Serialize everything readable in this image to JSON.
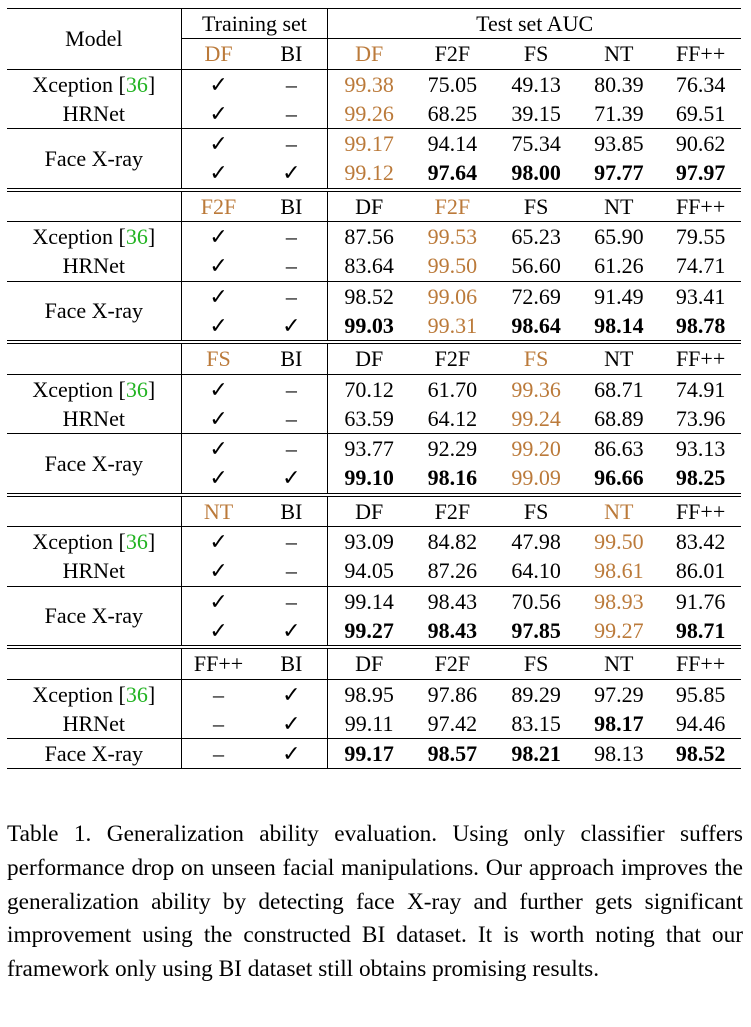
{
  "header": {
    "model_label": "Model",
    "training_set_label": "Training set",
    "test_set_label": "Test set AUC"
  },
  "styles": {
    "highlight_color": "#bb7a3a",
    "citation_color": "#22b322"
  },
  "blocks": [
    {
      "training_cols": [
        "DF",
        "BI"
      ],
      "test_cols": [
        "DF",
        "F2F",
        "FS",
        "NT",
        "FF++"
      ],
      "rows": [
        {
          "model": "Xception",
          "cite": "36",
          "train": [
            "✓",
            "–"
          ],
          "values": [
            "99.38",
            "75.05",
            "49.13",
            "80.39",
            "76.34"
          ]
        },
        {
          "model": "HRNet",
          "train": [
            "✓",
            "–"
          ],
          "values": [
            "99.26",
            "68.25",
            "39.15",
            "71.39",
            "69.51"
          ]
        },
        {
          "model": "Face X-ray",
          "train": [
            "✓",
            "–"
          ],
          "values": [
            "99.17",
            "94.14",
            "75.34",
            "93.85",
            "90.62"
          ]
        },
        {
          "train": [
            "✓",
            "✓"
          ],
          "values": [
            "99.12",
            "97.64",
            "98.00",
            "97.77",
            "97.97"
          ]
        }
      ]
    },
    {
      "training_cols": [
        "F2F",
        "BI"
      ],
      "test_cols": [
        "DF",
        "F2F",
        "FS",
        "NT",
        "FF++"
      ],
      "rows": [
        {
          "model": "Xception",
          "cite": "36",
          "train": [
            "✓",
            "–"
          ],
          "values": [
            "87.56",
            "99.53",
            "65.23",
            "65.90",
            "79.55"
          ]
        },
        {
          "model": "HRNet",
          "train": [
            "✓",
            "–"
          ],
          "values": [
            "83.64",
            "99.50",
            "56.60",
            "61.26",
            "74.71"
          ]
        },
        {
          "model": "Face X-ray",
          "train": [
            "✓",
            "–"
          ],
          "values": [
            "98.52",
            "99.06",
            "72.69",
            "91.49",
            "93.41"
          ]
        },
        {
          "train": [
            "✓",
            "✓"
          ],
          "values": [
            "99.03",
            "99.31",
            "98.64",
            "98.14",
            "98.78"
          ]
        }
      ]
    },
    {
      "training_cols": [
        "FS",
        "BI"
      ],
      "test_cols": [
        "DF",
        "F2F",
        "FS",
        "NT",
        "FF++"
      ],
      "rows": [
        {
          "model": "Xception",
          "cite": "36",
          "train": [
            "✓",
            "–"
          ],
          "values": [
            "70.12",
            "61.70",
            "99.36",
            "68.71",
            "74.91"
          ]
        },
        {
          "model": "HRNet",
          "train": [
            "✓",
            "–"
          ],
          "values": [
            "63.59",
            "64.12",
            "99.24",
            "68.89",
            "73.96"
          ]
        },
        {
          "model": "Face X-ray",
          "train": [
            "✓",
            "–"
          ],
          "values": [
            "93.77",
            "92.29",
            "99.20",
            "86.63",
            "93.13"
          ]
        },
        {
          "train": [
            "✓",
            "✓"
          ],
          "values": [
            "99.10",
            "98.16",
            "99.09",
            "96.66",
            "98.25"
          ]
        }
      ]
    },
    {
      "training_cols": [
        "NT",
        "BI"
      ],
      "test_cols": [
        "DF",
        "F2F",
        "FS",
        "NT",
        "FF++"
      ],
      "rows": [
        {
          "model": "Xception",
          "cite": "36",
          "train": [
            "✓",
            "–"
          ],
          "values": [
            "93.09",
            "84.82",
            "47.98",
            "99.50",
            "83.42"
          ]
        },
        {
          "model": "HRNet",
          "train": [
            "✓",
            "–"
          ],
          "values": [
            "94.05",
            "87.26",
            "64.10",
            "98.61",
            "86.01"
          ]
        },
        {
          "model": "Face X-ray",
          "train": [
            "✓",
            "–"
          ],
          "values": [
            "99.14",
            "98.43",
            "70.56",
            "98.93",
            "91.76"
          ]
        },
        {
          "train": [
            "✓",
            "✓"
          ],
          "values": [
            "99.27",
            "98.43",
            "97.85",
            "99.27",
            "98.71"
          ]
        }
      ]
    },
    {
      "training_cols": [
        "FF++",
        "BI"
      ],
      "test_cols": [
        "DF",
        "F2F",
        "FS",
        "NT",
        "FF++"
      ],
      "rows": [
        {
          "model": "Xception",
          "cite": "36",
          "train": [
            "–",
            "✓"
          ],
          "values": [
            "98.95",
            "97.86",
            "89.29",
            "97.29",
            "95.85"
          ]
        },
        {
          "model": "HRNet",
          "train": [
            "–",
            "✓"
          ],
          "values": [
            "99.11",
            "97.42",
            "83.15",
            "98.17",
            "94.46"
          ]
        },
        {
          "model": "Face X-ray",
          "train": [
            "–",
            "✓"
          ],
          "values": [
            "99.17",
            "98.57",
            "98.21",
            "98.13",
            "98.52"
          ]
        }
      ]
    }
  ],
  "caption": {
    "label": "Table 1.",
    "text": "Generalization ability evaluation. Using only classifier suffers performance drop on unseen facial manipulations. Our approach improves the generalization ability by detecting face X-ray and further gets significant improvement using the constructed BI dataset. It is worth noting that our framework only using BI dataset still obtains promising results."
  }
}
